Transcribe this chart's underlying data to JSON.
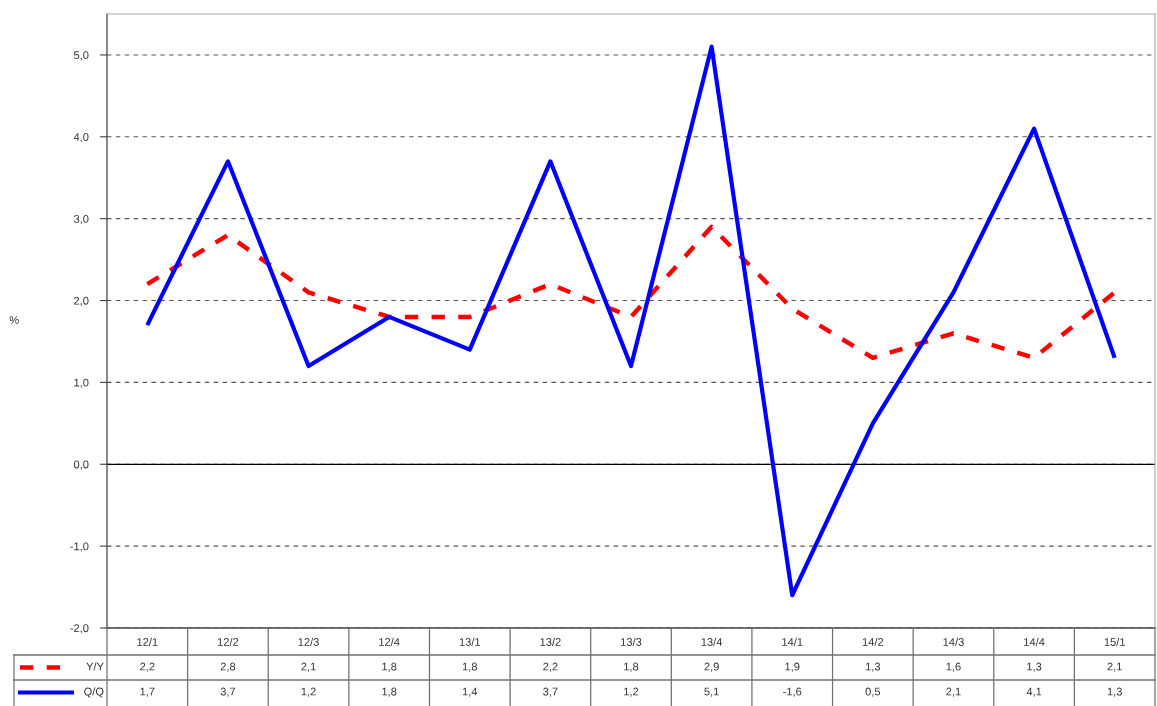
{
  "chart_data": {
    "type": "line",
    "ylabel": "%",
    "categories": [
      "12/1",
      "12/2",
      "12/3",
      "12/4",
      "13/1",
      "13/2",
      "13/3",
      "13/4",
      "14/1",
      "14/2",
      "14/3",
      "14/4",
      "15/1"
    ],
    "series": [
      {
        "name": "Y/Y",
        "color": "#ff0000",
        "line_style": "dashed",
        "values": [
          2.2,
          2.8,
          2.1,
          1.8,
          1.8,
          2.2,
          1.8,
          2.9,
          1.9,
          1.3,
          1.6,
          1.3,
          2.1
        ],
        "value_labels": [
          "2,2",
          "2,8",
          "2,1",
          "1,8",
          "1,8",
          "2,2",
          "1,8",
          "2,9",
          "1,9",
          "1,3",
          "1,6",
          "1,3",
          "2,1"
        ]
      },
      {
        "name": "Q/Q",
        "color": "#0000ff",
        "line_style": "solid",
        "values": [
          1.7,
          3.7,
          1.2,
          1.8,
          1.4,
          3.7,
          1.2,
          5.1,
          -1.6,
          0.5,
          2.1,
          4.1,
          1.3
        ],
        "value_labels": [
          "1,7",
          "3,7",
          "1,2",
          "1,8",
          "1,4",
          "3,7",
          "1,2",
          "5,1",
          "-1,6",
          "0,5",
          "2,1",
          "4,1",
          "1,3"
        ]
      }
    ],
    "ylim": [
      -2,
      5.5
    ],
    "yticks": [
      {
        "value": -2,
        "label": "-2,0"
      },
      {
        "value": -1,
        "label": "-1,0"
      },
      {
        "value": 0,
        "label": "0,0"
      },
      {
        "value": 1,
        "label": "1,0"
      },
      {
        "value": 2,
        "label": "2,0"
      },
      {
        "value": 3,
        "label": "3,0"
      },
      {
        "value": 4,
        "label": "4,0"
      },
      {
        "value": 5,
        "label": "5,0"
      }
    ],
    "grid": "y",
    "legend": "bottom left",
    "ref_lines": [
      {
        "axis": "y",
        "value": 0,
        "color": "#000000",
        "line_style": "solid"
      }
    ]
  }
}
